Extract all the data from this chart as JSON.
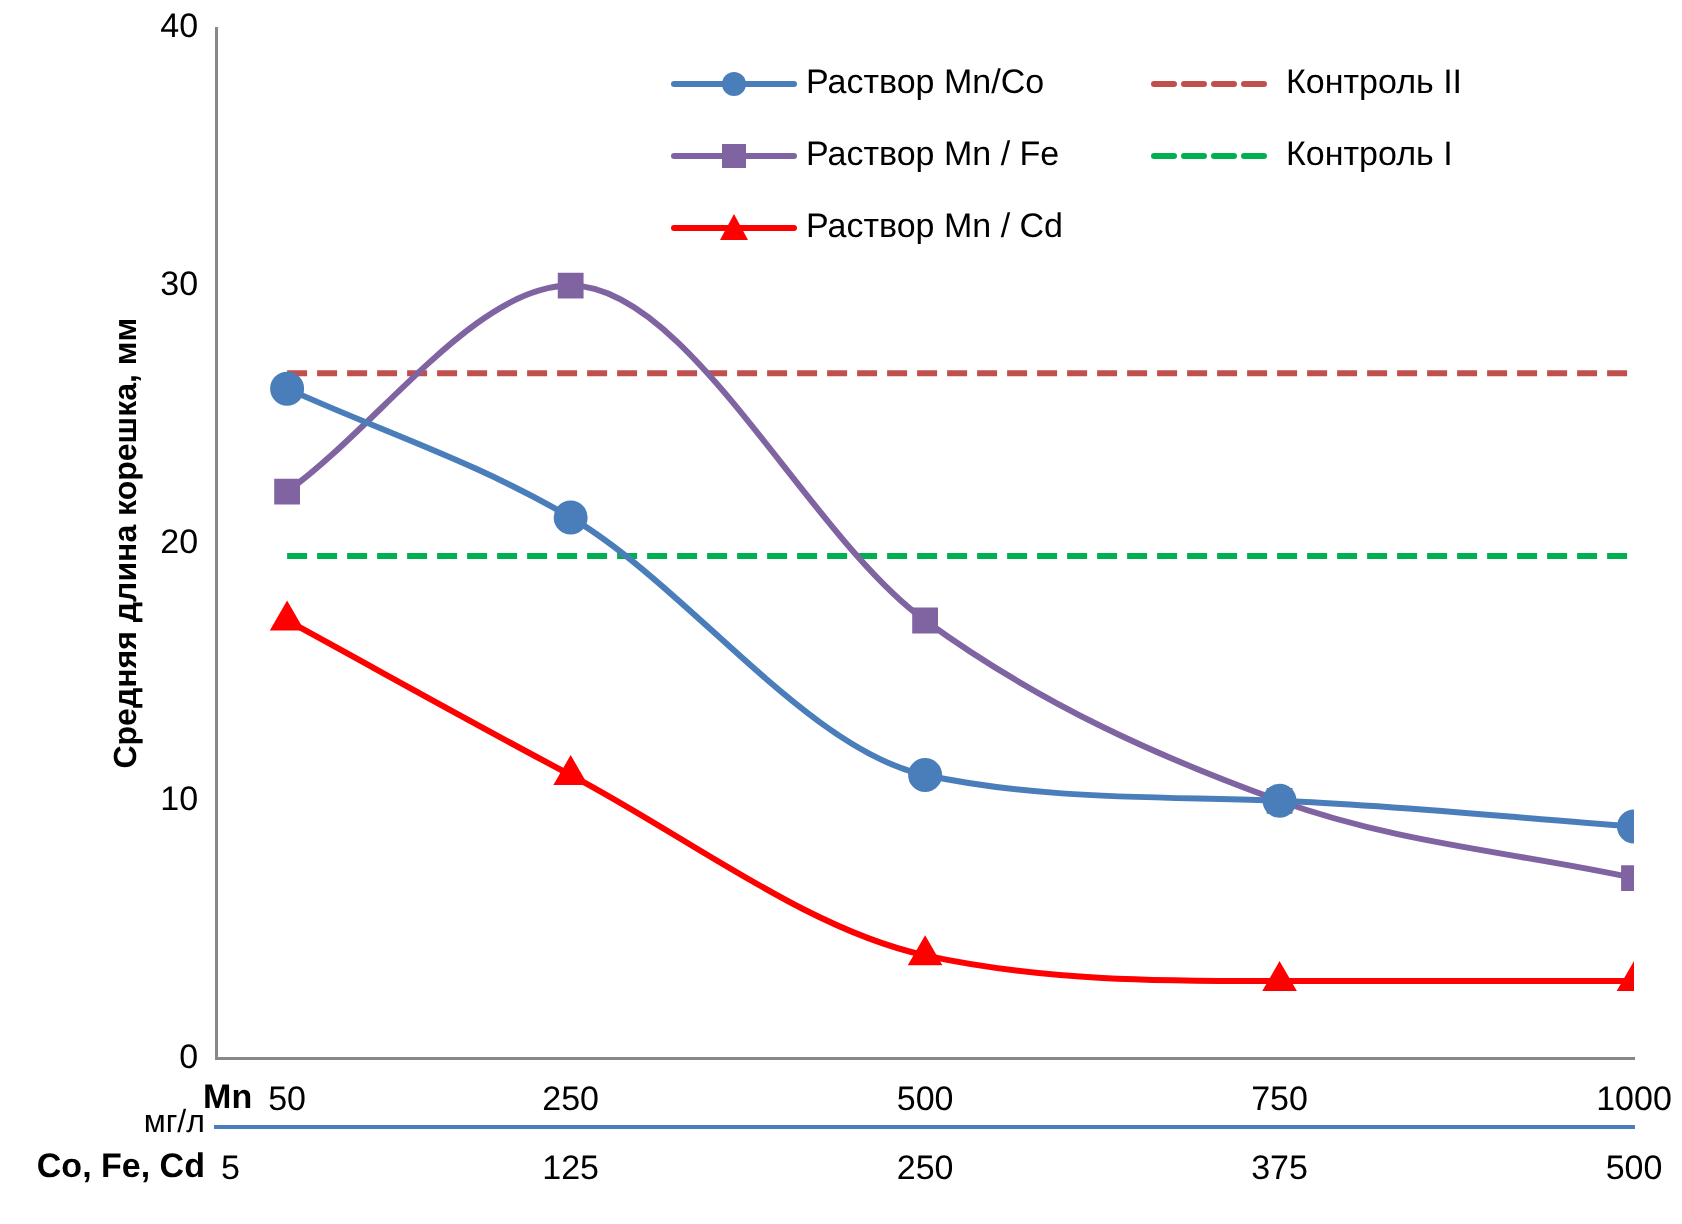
{
  "chart_data": {
    "type": "line",
    "ylabel": "Средняя длина корешка, мм",
    "xlabel": "Mn",
    "x2label": "Co, Fe, Cd",
    "annotations": [
      "мг/л"
    ],
    "x": [
      50,
      250,
      500,
      750,
      1000
    ],
    "xlim": [
      0,
      1000
    ],
    "xticks": [
      50,
      250,
      500,
      750,
      1000
    ],
    "x2lim": [
      0,
      500
    ],
    "x2ticks": [
      5,
      125,
      250,
      375,
      500
    ],
    "ylim": [
      0,
      40
    ],
    "yticks": [
      0,
      10,
      20,
      30,
      40
    ],
    "grid": false,
    "legend": "top right",
    "series": [
      {
        "name": "Раствор Mn/Co",
        "color": "#4a7ebb",
        "marker": "circle",
        "values": [
          26,
          21,
          11,
          10,
          9
        ]
      },
      {
        "name": "Раствор Mn / Fe",
        "color": "#8064a2",
        "marker": "square",
        "values": [
          22,
          30,
          17,
          10,
          7
        ]
      },
      {
        "name": "Раствор Mn / Cd",
        "color": "#ff0000",
        "marker": "triangle",
        "values": [
          17,
          11,
          4,
          3,
          3
        ]
      },
      {
        "name": "Контроль II",
        "color": "#c0504d",
        "marker": "none",
        "line_style": "dashed",
        "values": [
          26.6,
          26.6,
          26.6,
          26.6,
          26.6
        ]
      },
      {
        "name": "Контроль I",
        "color": "#00b050",
        "marker": "none",
        "line_style": "dashed",
        "values": [
          19.5,
          19.5,
          19.5,
          19.5,
          19.5
        ]
      }
    ]
  }
}
